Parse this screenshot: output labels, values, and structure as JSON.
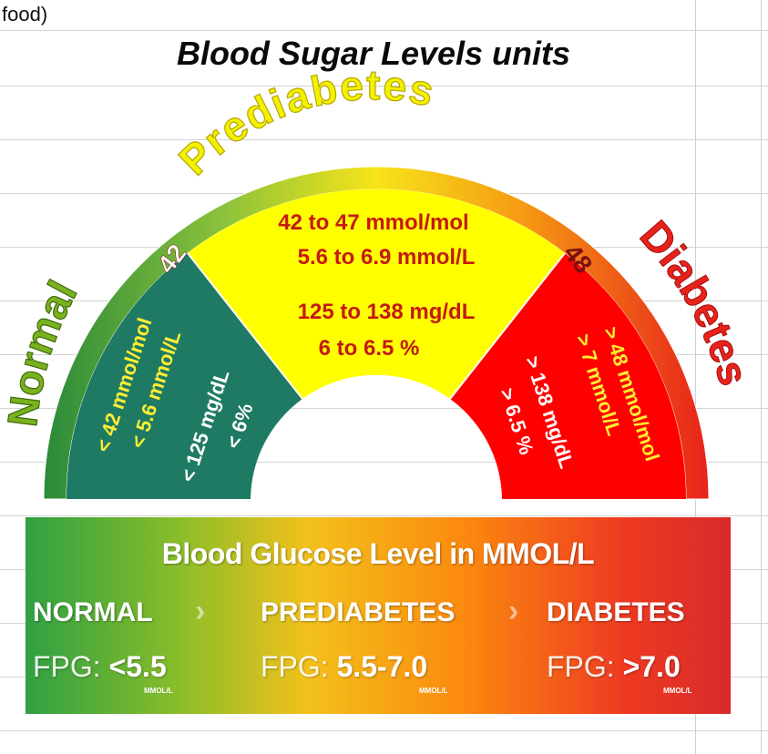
{
  "sheet": {
    "top_cell_text": "food)"
  },
  "title": "Blood Sugar Levels units",
  "gauge": {
    "zones": {
      "normal": {
        "arc_label": "Normal",
        "lines": [
          "< 42 mmol/mol",
          "< 5.6 mmol/L",
          "< 125 mg/dL",
          "< 6%"
        ],
        "color": "#1f7a63"
      },
      "prediabetes": {
        "arc_label": "Prediabetes",
        "lines": [
          "42 to 47 mmol/mol",
          "5.6 to 6.9 mmol/L",
          "125 to 138 mg/dL",
          "6 to 6.5 %"
        ],
        "color": "#ffff00"
      },
      "diabetes": {
        "arc_label": "Diabetes",
        "lines": [
          "> 48 mmol/mol",
          "> 7 mmol/L",
          "> 138 mg/dL",
          "> 6.5 %"
        ],
        "color": "#ff0000"
      }
    },
    "boundaries": {
      "low": "42",
      "high": "48"
    },
    "colors": {
      "normal_text": "#7ab21e",
      "prediabetes_text": "#f2f200",
      "diabetes_text": "#e8221b",
      "pre_value_text": "#c41a12",
      "dia_value_yellow": "#ffee33"
    }
  },
  "banner": {
    "title": "Blood Glucose Level in MMOL/L",
    "stages": [
      {
        "name": "NORMAL",
        "fpg_label": "FPG: ",
        "fpg_value": "<5.5",
        "unit": "MMOL/L"
      },
      {
        "name": "PREDIABETES",
        "fpg_label": "FPG: ",
        "fpg_value": "5.5-7.0",
        "unit": "MMOL/L"
      },
      {
        "name": "DIABETES",
        "fpg_label": "FPG: ",
        "fpg_value": ">7.0",
        "unit": "MMOL/L"
      }
    ],
    "separator": "›"
  }
}
